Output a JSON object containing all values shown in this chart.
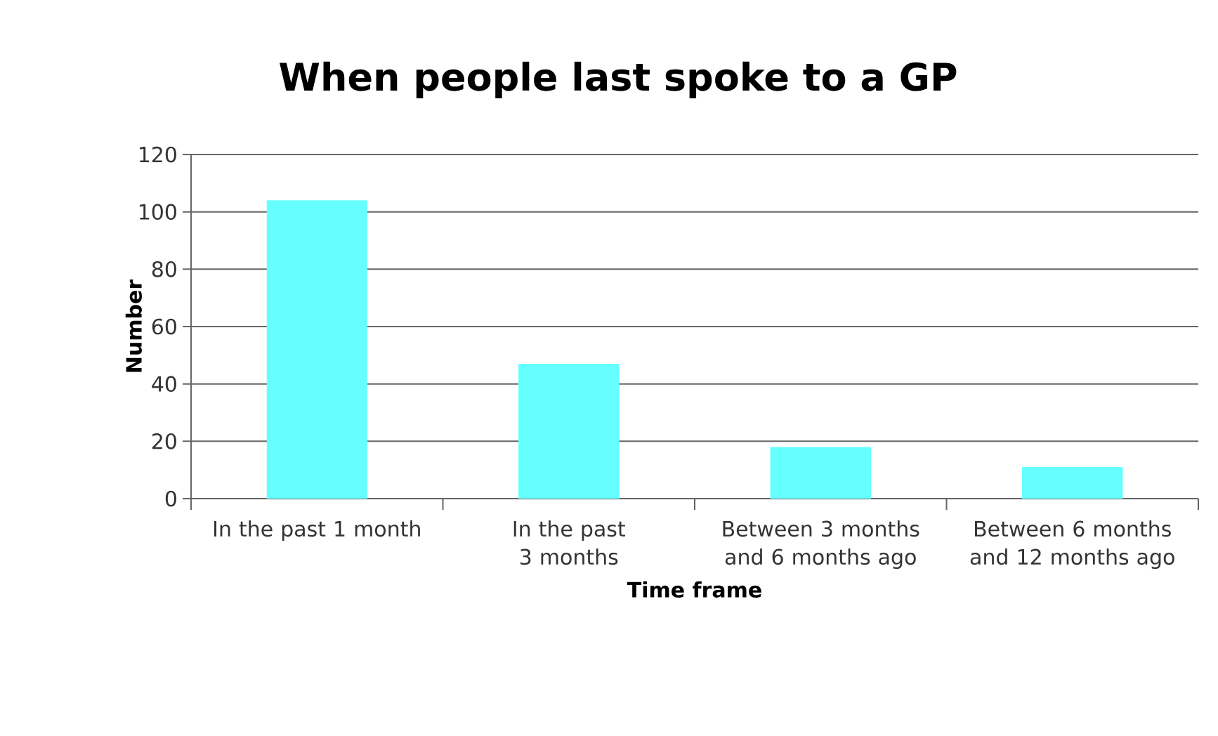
{
  "chart_data": {
    "type": "bar",
    "title": "When people last spoke to a GP",
    "xlabel": "Time frame",
    "ylabel": "Number",
    "categories": [
      "In the past 1 month",
      "In the past 3 months",
      "Between 3 months and 6 months ago",
      "Between 6 months and 12 months ago"
    ],
    "values": [
      104,
      47,
      18,
      11
    ],
    "color": "#66ffff",
    "ylim": [
      0,
      120
    ],
    "yticks": [
      0,
      20,
      40,
      60,
      80,
      100,
      120
    ],
    "grid": "y"
  }
}
